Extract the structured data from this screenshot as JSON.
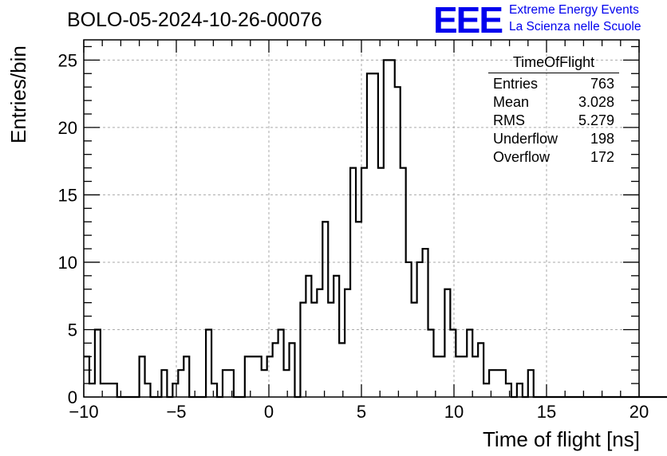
{
  "chart_data": {
    "type": "bar",
    "title": "BOLO-05-2024-10-26-00076",
    "xlabel": "Time of flight [ns]",
    "ylabel": "Entries/bin",
    "xlim": [
      -10,
      20
    ],
    "ylim": [
      0,
      26.5
    ],
    "grid": true,
    "bin_width": 0.3,
    "x_ticks": [
      "−10",
      "−5",
      "0",
      "5",
      "10",
      "15",
      "20"
    ],
    "y_ticks": [
      "0",
      "5",
      "10",
      "15",
      "20",
      "25"
    ],
    "values": [
      3,
      1,
      5,
      1,
      1,
      1,
      0,
      0,
      0,
      0,
      3,
      1,
      0,
      0,
      2,
      0,
      1,
      2,
      3,
      0,
      0,
      0,
      5,
      1,
      0,
      2,
      2,
      0,
      0,
      3,
      3,
      3,
      2,
      3,
      4,
      5,
      2,
      4,
      0,
      7,
      9,
      7,
      8,
      13,
      7,
      9,
      4,
      8,
      17,
      13,
      17,
      24,
      24,
      17,
      25,
      25,
      23,
      17,
      10,
      7,
      10,
      11,
      5,
      3,
      3,
      8,
      5,
      3,
      3,
      5,
      3,
      4,
      1,
      2,
      2,
      2,
      1,
      0,
      1,
      0,
      2,
      0,
      0,
      0,
      0,
      0,
      0,
      0,
      0,
      0,
      0,
      0,
      0,
      0,
      0,
      0,
      0,
      0,
      0,
      0,
      0,
      0,
      0,
      0,
      0,
      0,
      0,
      0,
      0,
      0,
      0,
      0,
      0,
      0,
      0,
      0,
      0,
      0,
      0,
      0
    ]
  },
  "stats_box": {
    "title": "TimeOfFlight",
    "rows": [
      {
        "label": "Entries",
        "value": "763"
      },
      {
        "label": "Mean",
        "value": "3.028"
      },
      {
        "label": "RMS",
        "value": "5.279"
      },
      {
        "label": "Underflow",
        "value": "198"
      },
      {
        "label": "Overflow",
        "value": "172"
      }
    ]
  },
  "branding": {
    "logo": "EEE",
    "line1": "Extreme Energy Events",
    "line2": "La Scienza nelle Scuole",
    "color": "#0000ee"
  }
}
